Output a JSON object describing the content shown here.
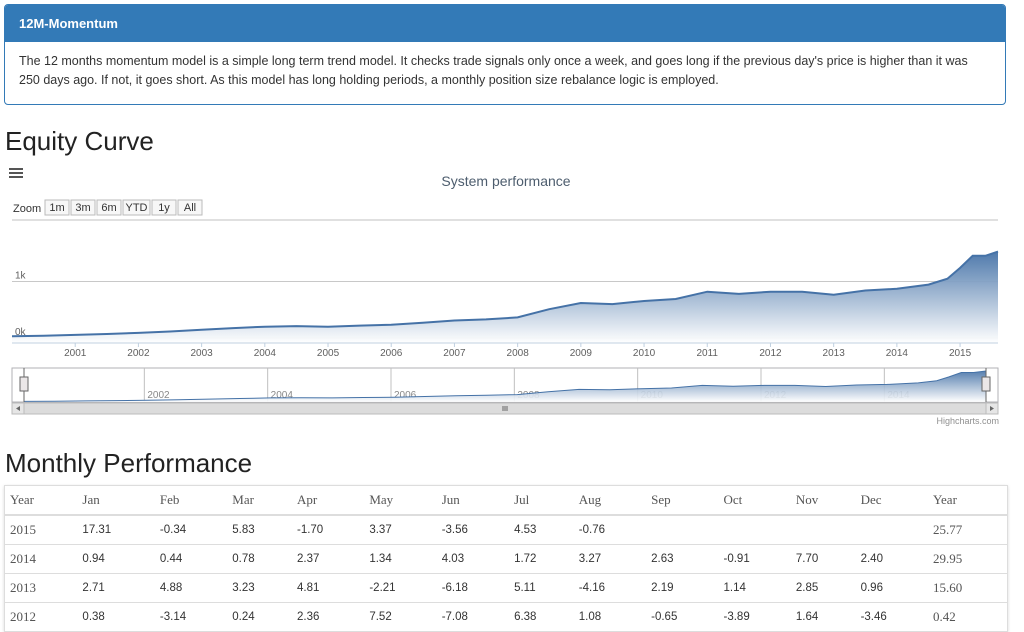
{
  "panel": {
    "title": "12M-Momentum",
    "body": "The 12 months momentum model is a simple long term trend model. It checks trade signals only once a week, and goes long if the previous day's price is higher than it was 250 days ago. If not, it goes short. As this model has long holding periods, a monthly position size rebalance logic is employed."
  },
  "headings": {
    "equity": "Equity Curve",
    "monthly": "Monthly Performance"
  },
  "chart_data": {
    "type": "area",
    "title": "System performance",
    "zoom_label": "Zoom",
    "zoom_buttons": [
      "1m",
      "3m",
      "6m",
      "YTD",
      "1y",
      "All"
    ],
    "x": [
      2000.0,
      2000.5,
      2001.0,
      2001.5,
      2002.0,
      2002.5,
      2003.0,
      2003.5,
      2004.0,
      2004.5,
      2005.0,
      2005.5,
      2006.0,
      2006.5,
      2007.0,
      2007.5,
      2008.0,
      2008.5,
      2009.0,
      2009.5,
      2010.0,
      2010.5,
      2011.0,
      2011.5,
      2012.0,
      2012.5,
      2013.0,
      2013.5,
      2014.0,
      2014.5,
      2014.8,
      2015.0,
      2015.2,
      2015.4,
      2015.6
    ],
    "values": [
      30,
      40,
      55,
      70,
      90,
      115,
      145,
      175,
      200,
      210,
      200,
      220,
      235,
      270,
      310,
      330,
      365,
      510,
      620,
      600,
      655,
      690,
      820,
      780,
      820,
      820,
      765,
      840,
      870,
      945,
      1050,
      1240,
      1455,
      1455,
      1530
    ],
    "color": "#4572a7",
    "xlim": [
      2000,
      2015.6
    ],
    "xticks": [
      2001,
      2002,
      2003,
      2004,
      2005,
      2006,
      2007,
      2008,
      2009,
      2010,
      2011,
      2012,
      2013,
      2014,
      2015
    ],
    "ylim": [
      0,
      2000
    ],
    "yticks": [
      {
        "value": 0,
        "label": "0k"
      },
      {
        "value": 1000,
        "label": "1k"
      }
    ],
    "grid": true,
    "navigator_xticks": [
      2002,
      2004,
      2006,
      2008,
      2010,
      2012,
      2014
    ],
    "credits": "Highcharts.com"
  },
  "table": {
    "header": [
      "Year",
      "Jan",
      "Feb",
      "Mar",
      "Apr",
      "May",
      "Jun",
      "Jul",
      "Aug",
      "Sep",
      "Oct",
      "Nov",
      "Dec",
      "Year"
    ],
    "rows": [
      [
        "2015",
        "17.31",
        "-0.34",
        "5.83",
        "-1.70",
        "3.37",
        "-3.56",
        "4.53",
        "-0.76",
        null,
        null,
        null,
        null,
        "25.77"
      ],
      [
        "2014",
        "0.94",
        "0.44",
        "0.78",
        "2.37",
        "1.34",
        "4.03",
        "1.72",
        "3.27",
        "2.63",
        "-0.91",
        "7.70",
        "2.40",
        "29.95"
      ],
      [
        "2013",
        "2.71",
        "4.88",
        "3.23",
        "4.81",
        "-2.21",
        "-6.18",
        "5.11",
        "-4.16",
        "2.19",
        "1.14",
        "2.85",
        "0.96",
        "15.60"
      ],
      [
        "2012",
        "0.38",
        "-3.14",
        "0.24",
        "2.36",
        "7.52",
        "-7.08",
        "6.38",
        "1.08",
        "-0.65",
        "-3.89",
        "1.64",
        "-3.46",
        "0.42"
      ]
    ]
  }
}
